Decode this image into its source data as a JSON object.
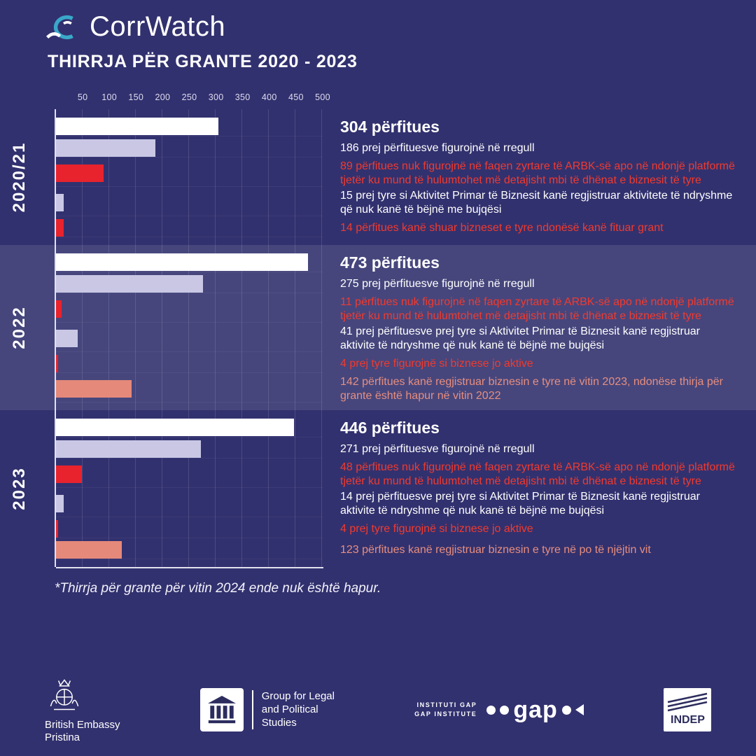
{
  "header": {
    "brand": "CorrWatch",
    "title": "THIRRJA PËR GRANTE 2020 - 2023"
  },
  "colors": {
    "background": "#32316f",
    "highlight_band": "rgba(255,255,255,0.10)",
    "bar_white": "#ffffff",
    "bar_lavender": "#c9c7e4",
    "bar_red": "#e8232d",
    "bar_salmon": "#e5897a",
    "text_red": "#f13a2d",
    "text_salmon": "#e78e7e"
  },
  "chart_data": {
    "type": "bar",
    "orientation": "horizontal",
    "title": "THIRRJA PËR GRANTE 2020 - 2023",
    "xlabel": "",
    "ylabel": "",
    "xlim": [
      0,
      500
    ],
    "xticks": [
      50,
      100,
      150,
      200,
      250,
      300,
      350,
      400,
      450,
      500
    ],
    "grid": true,
    "groups": [
      {
        "year": "2020/21",
        "highlight": false,
        "bars": [
          {
            "value": 304,
            "color": "white",
            "label_style": "headline",
            "label": "304 përfitues"
          },
          {
            "value": 186,
            "color": "lavender",
            "label_style": "white",
            "label": "186 prej përfituesve figurojnë në rregull"
          },
          {
            "value": 89,
            "color": "red",
            "label_style": "red",
            "label": "89 përfitues nuk figurojnë në faqen zyrtare të ARBK-së apo në ndonjë platformë tjetër ku mund të hulumtohet më detajisht mbi të dhënat e biznesit të tyre"
          },
          {
            "value": 15,
            "color": "lavender",
            "label_style": "white",
            "label": "15 prej tyre si Aktivitet Primar të Biznesit kanë regjistruar aktivitete të ndryshme që nuk kanë të bëjnë me bujqësi"
          },
          {
            "value": 14,
            "color": "red",
            "label_style": "red",
            "label": "14 përfitues kanë shuar bizneset e tyre ndonësë kanë fituar grant"
          }
        ]
      },
      {
        "year": "2022",
        "highlight": true,
        "bars": [
          {
            "value": 473,
            "color": "white",
            "label_style": "headline",
            "label": "473 përfitues"
          },
          {
            "value": 275,
            "color": "lavender",
            "label_style": "white",
            "label": "275 prej përfituesve figurojnë në rregull"
          },
          {
            "value": 11,
            "color": "red",
            "label_style": "red",
            "label": "11 përfitues nuk figurojnë në faqen zyrtare të ARBK-së apo në ndonjë platformë tjetër ku mund të hulumtohet më detajisht mbi të dhënat e biznesit të tyre"
          },
          {
            "value": 41,
            "color": "lavender",
            "label_style": "white",
            "label": "41 prej përfituesve prej tyre si Aktivitet Primar të Biznesit kanë regjistruar aktivite të ndryshme që nuk kanë të bëjnë me bujqësi"
          },
          {
            "value": 4,
            "color": "red",
            "label_style": "red",
            "label": "4 prej tyre figurojnë si biznese jo aktive"
          },
          {
            "value": 142,
            "color": "salmon",
            "label_style": "salmon",
            "label": "142 përfitues kanë regjistruar biznesin e tyre në vitin 2023, ndonëse thirja për grante është hapur në vitin 2022"
          }
        ]
      },
      {
        "year": "2023",
        "highlight": false,
        "bars": [
          {
            "value": 446,
            "color": "white",
            "label_style": "headline",
            "label": "446 përfitues"
          },
          {
            "value": 271,
            "color": "lavender",
            "label_style": "white",
            "label": "271 prej përfituesve figurojnë në rregull"
          },
          {
            "value": 48,
            "color": "red",
            "label_style": "red",
            "label": "48 përfitues nuk figurojnë në faqen zyrtare të ARBK-së apo në ndonjë platformë tjetër ku mund të hulumtohet më detajisht mbi të dhënat e biznesit të tyre"
          },
          {
            "value": 14,
            "color": "lavender",
            "label_style": "white",
            "label": "14 prej përfituesve prej tyre si Aktivitet Primar të Biznesit kanë regjistruar aktivite të ndryshme që nuk kanë të bëjnë me bujqësi"
          },
          {
            "value": 4,
            "color": "red",
            "label_style": "red",
            "label": "4 prej tyre figurojnë si biznese jo aktive"
          },
          {
            "value": 123,
            "color": "salmon",
            "label_style": "salmon",
            "label": "123 përfitues kanë regjistruar biznesin e tyre në po të njëjtin vit"
          }
        ]
      }
    ]
  },
  "footnote": "*Thirrja për grante për vitin 2024 ende nuk është hapur.",
  "footer": {
    "embassy": {
      "lines": [
        "British Embassy",
        "Pristina"
      ]
    },
    "glps": {
      "lines": [
        "Group for Legal",
        "and Political",
        "Studies"
      ]
    },
    "gap": {
      "caption_lines": [
        "INSTITUTI GAP",
        "GAP INSTITUTE"
      ],
      "logo_word": "gap"
    },
    "indep": {
      "label": "INDEP"
    }
  }
}
